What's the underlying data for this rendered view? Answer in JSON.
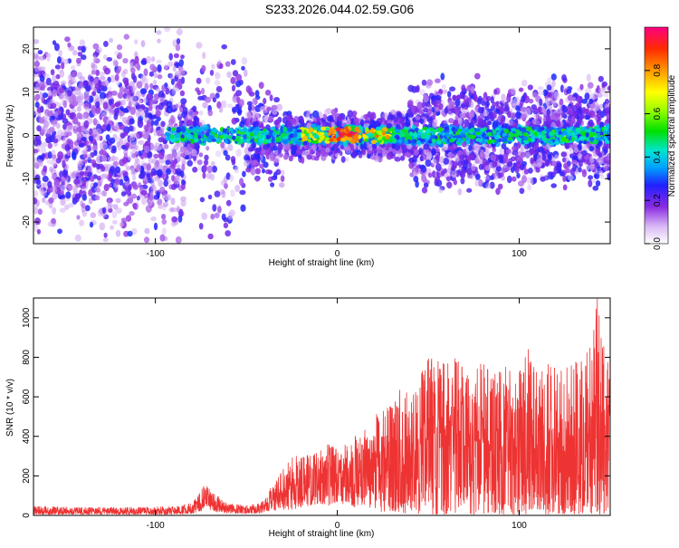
{
  "title": "S233.2026.044.02.59.G06",
  "chart_data": [
    {
      "type": "heatmap",
      "xlabel": "Height of straight line (km)",
      "ylabel": "Frequency (Hz)",
      "xlim": [
        -167,
        150
      ],
      "ylim": [
        -25,
        25
      ],
      "x_ticks": [
        -100,
        0,
        100
      ],
      "y_ticks": [
        -20,
        -10,
        0,
        10,
        20
      ],
      "colorbar": {
        "label": "Normalized spectral amplitude",
        "range": [
          0,
          1
        ],
        "ticks": [
          0.0,
          0.2,
          0.4,
          0.6,
          0.8
        ]
      },
      "ridge_frequency_hz": 0,
      "high_amplitude_band_km": [
        -20,
        30
      ]
    },
    {
      "type": "line",
      "xlabel": "Height of straight line (km)",
      "ylabel": "SNR (10 * v/v)",
      "xlim": [
        -167,
        150
      ],
      "ylim": [
        0,
        1100
      ],
      "x_ticks": [
        -100,
        0,
        100
      ],
      "y_ticks": [
        0,
        200,
        400,
        600,
        800,
        1000
      ],
      "color": "#ee3333",
      "series": [
        {
          "x": [
            -167,
            -140,
            -110,
            -90,
            -80,
            -75,
            -72,
            -68,
            -60,
            -50,
            -42,
            -38,
            -30,
            -25,
            -20,
            -15,
            -10,
            -5,
            0,
            5,
            10,
            15,
            18,
            20,
            22,
            25,
            30,
            35,
            38,
            42,
            45,
            50,
            55,
            60,
            65,
            70,
            75,
            80,
            85,
            90,
            95,
            100,
            105,
            110,
            115,
            120,
            125,
            130,
            135,
            140,
            143,
            145,
            148,
            150
          ],
          "envelope_max": [
            45,
            40,
            40,
            45,
            60,
            120,
            180,
            110,
            60,
            50,
            60,
            120,
            230,
            290,
            310,
            300,
            320,
            360,
            330,
            360,
            400,
            430,
            460,
            560,
            500,
            560,
            600,
            640,
            620,
            640,
            700,
            800,
            780,
            760,
            820,
            760,
            720,
            780,
            700,
            740,
            760,
            720,
            840,
            720,
            760,
            780,
            740,
            780,
            800,
            860,
            1100,
            900,
            840,
            640
          ],
          "envelope_min": [
            5,
            5,
            5,
            5,
            10,
            20,
            40,
            20,
            10,
            10,
            10,
            20,
            30,
            30,
            40,
            50,
            60,
            50,
            50,
            60,
            40,
            50,
            40,
            30,
            20,
            20,
            20,
            10,
            10,
            10,
            10,
            5,
            5,
            5,
            5,
            5,
            5,
            5,
            5,
            5,
            5,
            5,
            5,
            5,
            5,
            5,
            5,
            5,
            5,
            5,
            5,
            5,
            5,
            5
          ]
        }
      ]
    }
  ]
}
